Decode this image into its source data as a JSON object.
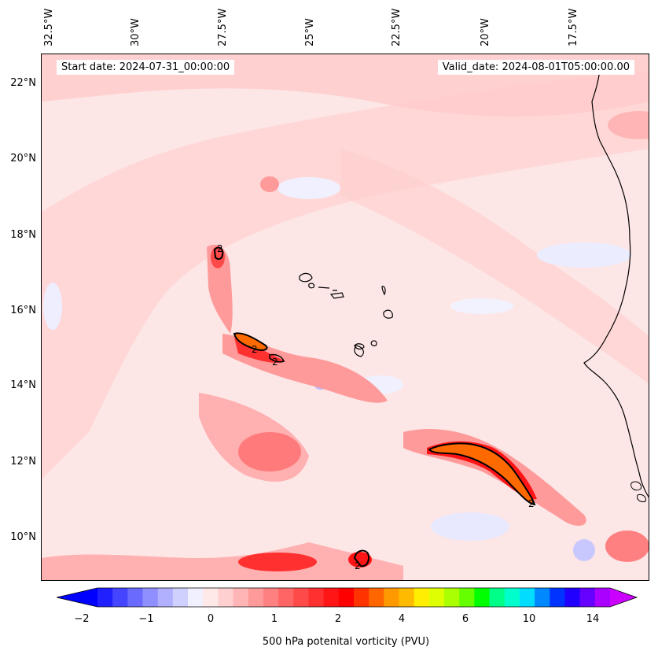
{
  "header": {
    "start_date": "Start date: 2024-07-31_00:00:00",
    "valid_date": "Valid_date: 2024-08-01T05:00:00.00"
  },
  "axes": {
    "lon_labels": [
      "32.5°W",
      "30°W",
      "27.5°W",
      "25°W",
      "22.5°W",
      "20°W",
      "17.5°W"
    ],
    "lat_labels": [
      "22°N",
      "20°N",
      "18°N",
      "16°N",
      "14°N",
      "12°N",
      "10°N"
    ]
  },
  "contour_labels": [
    "2",
    "2",
    "2",
    "2",
    "2",
    "2"
  ],
  "colorbar": {
    "label": "500 hPa potenital vorticity (PVU)",
    "ticks": [
      "−2",
      "−1",
      "0",
      "1",
      "2",
      "4",
      "6",
      "10",
      "14"
    ],
    "colors": [
      "#0000ff",
      "#2020ff",
      "#4545ff",
      "#6a6aff",
      "#8f8fff",
      "#b0b0ff",
      "#d0d0ff",
      "#f0f0ff",
      "#ffe8e8",
      "#ffd0d0",
      "#ffb5b5",
      "#ff9a9a",
      "#ff8080",
      "#ff6565",
      "#ff4a4a",
      "#ff3030",
      "#ff1515",
      "#ff0000",
      "#ff3300",
      "#ff6600",
      "#ff9900",
      "#ffbb00",
      "#ffee00",
      "#ddff00",
      "#aaff00",
      "#66ff00",
      "#00ff00",
      "#00ff88",
      "#00ffcc",
      "#00ddff",
      "#0088ff",
      "#0033ff",
      "#2200ff",
      "#6600ff",
      "#aa00ff",
      "#cc00ff"
    ]
  },
  "colors": {
    "coast": "#000000",
    "contour": "#000000",
    "high_pv": "#ff6a00",
    "background_pv": "#fde6e6"
  }
}
